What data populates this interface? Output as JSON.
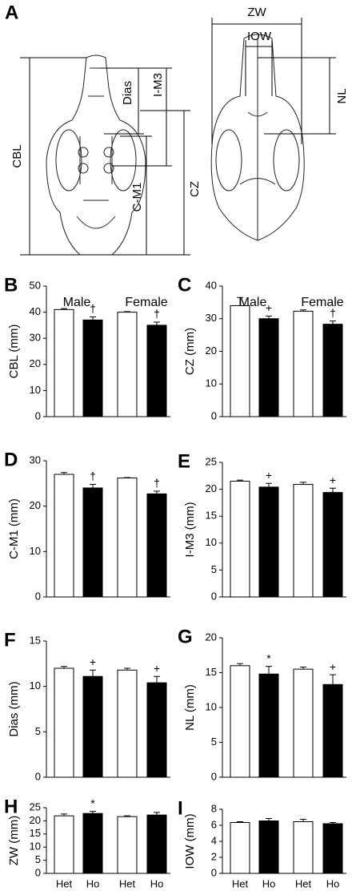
{
  "diagram": {
    "panel": "A",
    "labels": [
      "CBL",
      "Dias",
      "I-M3",
      "C-M1",
      "CZ",
      "ZW",
      "IOW",
      "NL"
    ]
  },
  "chart_data": [
    {
      "type": "bar",
      "panel": "B",
      "ylabel": "CBL (mm)",
      "groups": [
        "Male",
        "Female"
      ],
      "categories": [
        null,
        null,
        null,
        null
      ],
      "values": [
        41,
        37,
        40,
        35
      ],
      "errors": [
        0.4,
        1.2,
        0.2,
        1.2
      ],
      "annotations": [
        null,
        "†",
        null,
        "†"
      ],
      "colors": [
        "#ffffff",
        "#000000",
        "#ffffff",
        "#000000"
      ],
      "ylim": [
        0,
        50
      ],
      "yticks": [
        0,
        10,
        20,
        30,
        40,
        50
      ]
    },
    {
      "type": "bar",
      "panel": "C",
      "ylabel": "CZ (mm)",
      "groups": [
        "Male",
        "Female"
      ],
      "categories": [
        null,
        null,
        null,
        null
      ],
      "values": [
        34,
        30,
        32.3,
        28.3
      ],
      "errors": [
        2.5,
        0.8,
        0.4,
        1
      ],
      "annotations": [
        null,
        "+",
        null,
        "†"
      ],
      "colors": [
        "#ffffff",
        "#000000",
        "#ffffff",
        "#000000"
      ],
      "ylim": [
        0,
        40
      ],
      "yticks": [
        0,
        10,
        20,
        30,
        40
      ]
    },
    {
      "type": "bar",
      "panel": "D",
      "ylabel": "C-M1 (mm)",
      "categories": [
        null,
        null,
        null,
        null
      ],
      "values": [
        27,
        24,
        26.2,
        22.7
      ],
      "errors": [
        0.4,
        0.8,
        0.1,
        0.6
      ],
      "annotations": [
        null,
        "†",
        null,
        "†"
      ],
      "colors": [
        "#ffffff",
        "#000000",
        "#ffffff",
        "#000000"
      ],
      "ylim": [
        0,
        30
      ],
      "yticks": [
        0,
        10,
        20,
        30
      ]
    },
    {
      "type": "bar",
      "panel": "E",
      "ylabel": "I-M3 (mm)",
      "categories": [
        null,
        null,
        null,
        null
      ],
      "values": [
        21.5,
        20.4,
        20.9,
        19.4
      ],
      "errors": [
        0.2,
        0.7,
        0.4,
        0.8
      ],
      "annotations": [
        null,
        "+",
        null,
        "+"
      ],
      "colors": [
        "#ffffff",
        "#000000",
        "#ffffff",
        "#000000"
      ],
      "ylim": [
        0,
        25
      ],
      "yticks": [
        0,
        5,
        10,
        15,
        20,
        25
      ]
    },
    {
      "type": "bar",
      "panel": "F",
      "ylabel": "Dias (mm)",
      "categories": [
        null,
        null,
        null,
        null
      ],
      "values": [
        12,
        11.1,
        11.8,
        10.4
      ],
      "errors": [
        0.2,
        0.7,
        0.2,
        0.7
      ],
      "annotations": [
        null,
        "+",
        null,
        "+"
      ],
      "colors": [
        "#ffffff",
        "#000000",
        "#ffffff",
        "#000000"
      ],
      "ylim": [
        0,
        15
      ],
      "yticks": [
        0,
        5,
        10,
        15
      ]
    },
    {
      "type": "bar",
      "panel": "G",
      "ylabel": "NL (mm)",
      "categories": [
        null,
        null,
        null,
        null
      ],
      "values": [
        16,
        14.8,
        15.5,
        13.3
      ],
      "errors": [
        0.3,
        1.1,
        0.3,
        1.4
      ],
      "annotations": [
        null,
        "*",
        null,
        "+"
      ],
      "colors": [
        "#ffffff",
        "#000000",
        "#ffffff",
        "#000000"
      ],
      "ylim": [
        0,
        20
      ],
      "yticks": [
        0,
        5,
        10,
        15,
        20
      ]
    },
    {
      "type": "bar",
      "panel": "H",
      "ylabel": "ZW (mm)",
      "categories": [
        "Het",
        "Ho",
        "Het",
        "Ho"
      ],
      "values": [
        21.9,
        22.8,
        21.6,
        22.2
      ],
      "errors": [
        0.7,
        0.8,
        0.3,
        1.0
      ],
      "annotations": [
        null,
        "*",
        null,
        null
      ],
      "colors": [
        "#ffffff",
        "#000000",
        "#ffffff",
        "#000000"
      ],
      "ylim": [
        0,
        25
      ],
      "yticks": [
        0,
        5,
        10,
        15,
        20,
        25
      ]
    },
    {
      "type": "bar",
      "panel": "I",
      "ylabel": "IOW (mm)",
      "categories": [
        "Het",
        "Ho",
        "Het",
        "Ho"
      ],
      "values": [
        6.35,
        6.55,
        6.45,
        6.2
      ],
      "errors": [
        0.1,
        0.3,
        0.3,
        0.15
      ],
      "annotations": [
        null,
        null,
        null,
        null
      ],
      "colors": [
        "#ffffff",
        "#000000",
        "#ffffff",
        "#000000"
      ],
      "ylim": [
        0,
        8
      ],
      "yticks": [
        0,
        2,
        4,
        6,
        8
      ]
    }
  ]
}
